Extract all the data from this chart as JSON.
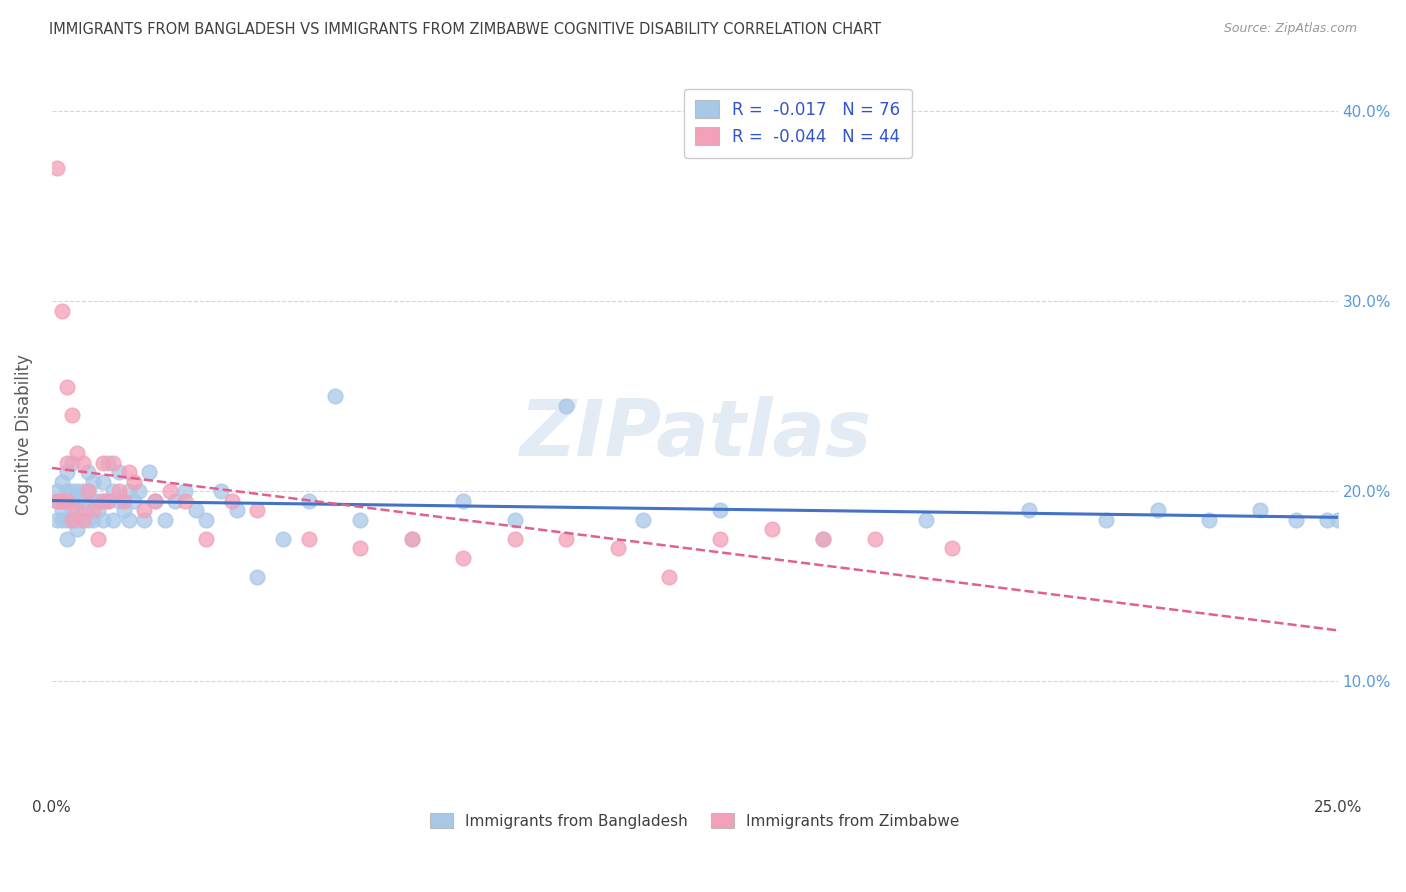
{
  "title": "IMMIGRANTS FROM BANGLADESH VS IMMIGRANTS FROM ZIMBABWE COGNITIVE DISABILITY CORRELATION CHART",
  "source": "Source: ZipAtlas.com",
  "ylabel": "Cognitive Disability",
  "xlim": [
    0.0,
    0.25
  ],
  "ylim": [
    0.04,
    0.42
  ],
  "xticks": [
    0.0,
    0.05,
    0.1,
    0.15,
    0.2,
    0.25
  ],
  "xticklabels": [
    "0.0%",
    "",
    "",
    "",
    "",
    "25.0%"
  ],
  "yticks": [
    0.1,
    0.2,
    0.3,
    0.4
  ],
  "yticklabels_right": [
    "10.0%",
    "20.0%",
    "30.0%",
    "40.0%"
  ],
  "watermark": "ZIPatlas",
  "series1_color": "#a8c8e8",
  "series2_color": "#f4a0b8",
  "trendline1_color": "#4472c4",
  "trendline2_color": "#e06090",
  "grid_color": "#cccccc",
  "background_color": "#ffffff",
  "title_color": "#404040",
  "axis_label_color": "#5a5a5a",
  "tick_color_right": "#5599dd",
  "r1": -0.017,
  "n1": 76,
  "r2": -0.044,
  "n2": 44,
  "bangladesh_x": [
    0.001,
    0.001,
    0.001,
    0.002,
    0.002,
    0.002,
    0.002,
    0.003,
    0.003,
    0.003,
    0.003,
    0.003,
    0.004,
    0.004,
    0.004,
    0.004,
    0.005,
    0.005,
    0.005,
    0.005,
    0.006,
    0.006,
    0.006,
    0.007,
    0.007,
    0.007,
    0.008,
    0.008,
    0.008,
    0.009,
    0.009,
    0.01,
    0.01,
    0.01,
    0.011,
    0.011,
    0.012,
    0.012,
    0.013,
    0.013,
    0.014,
    0.015,
    0.015,
    0.016,
    0.017,
    0.018,
    0.019,
    0.02,
    0.022,
    0.024,
    0.026,
    0.028,
    0.03,
    0.033,
    0.036,
    0.04,
    0.045,
    0.05,
    0.055,
    0.06,
    0.07,
    0.08,
    0.09,
    0.1,
    0.115,
    0.13,
    0.15,
    0.17,
    0.19,
    0.205,
    0.215,
    0.225,
    0.235,
    0.242,
    0.248,
    0.25
  ],
  "bangladesh_y": [
    0.195,
    0.185,
    0.2,
    0.19,
    0.185,
    0.195,
    0.205,
    0.185,
    0.195,
    0.2,
    0.21,
    0.175,
    0.19,
    0.2,
    0.185,
    0.215,
    0.185,
    0.195,
    0.2,
    0.18,
    0.19,
    0.2,
    0.195,
    0.185,
    0.2,
    0.21,
    0.195,
    0.205,
    0.185,
    0.195,
    0.19,
    0.195,
    0.185,
    0.205,
    0.195,
    0.215,
    0.185,
    0.2,
    0.195,
    0.21,
    0.19,
    0.2,
    0.185,
    0.195,
    0.2,
    0.185,
    0.21,
    0.195,
    0.185,
    0.195,
    0.2,
    0.19,
    0.185,
    0.2,
    0.19,
    0.155,
    0.175,
    0.195,
    0.25,
    0.185,
    0.175,
    0.195,
    0.185,
    0.245,
    0.185,
    0.19,
    0.175,
    0.185,
    0.19,
    0.185,
    0.19,
    0.185,
    0.19,
    0.185,
    0.185,
    0.185
  ],
  "zimbabwe_x": [
    0.001,
    0.001,
    0.002,
    0.002,
    0.003,
    0.003,
    0.003,
    0.004,
    0.004,
    0.005,
    0.005,
    0.006,
    0.006,
    0.007,
    0.008,
    0.009,
    0.01,
    0.01,
    0.011,
    0.012,
    0.013,
    0.014,
    0.015,
    0.016,
    0.018,
    0.02,
    0.023,
    0.026,
    0.03,
    0.035,
    0.04,
    0.05,
    0.06,
    0.07,
    0.08,
    0.09,
    0.1,
    0.11,
    0.12,
    0.13,
    0.14,
    0.15,
    0.16,
    0.175
  ],
  "zimbabwe_y": [
    0.37,
    0.195,
    0.295,
    0.195,
    0.255,
    0.215,
    0.195,
    0.24,
    0.185,
    0.22,
    0.19,
    0.215,
    0.185,
    0.2,
    0.19,
    0.175,
    0.215,
    0.195,
    0.195,
    0.215,
    0.2,
    0.195,
    0.21,
    0.205,
    0.19,
    0.195,
    0.2,
    0.195,
    0.175,
    0.195,
    0.19,
    0.175,
    0.17,
    0.175,
    0.165,
    0.175,
    0.175,
    0.17,
    0.155,
    0.175,
    0.18,
    0.175,
    0.175,
    0.17
  ]
}
